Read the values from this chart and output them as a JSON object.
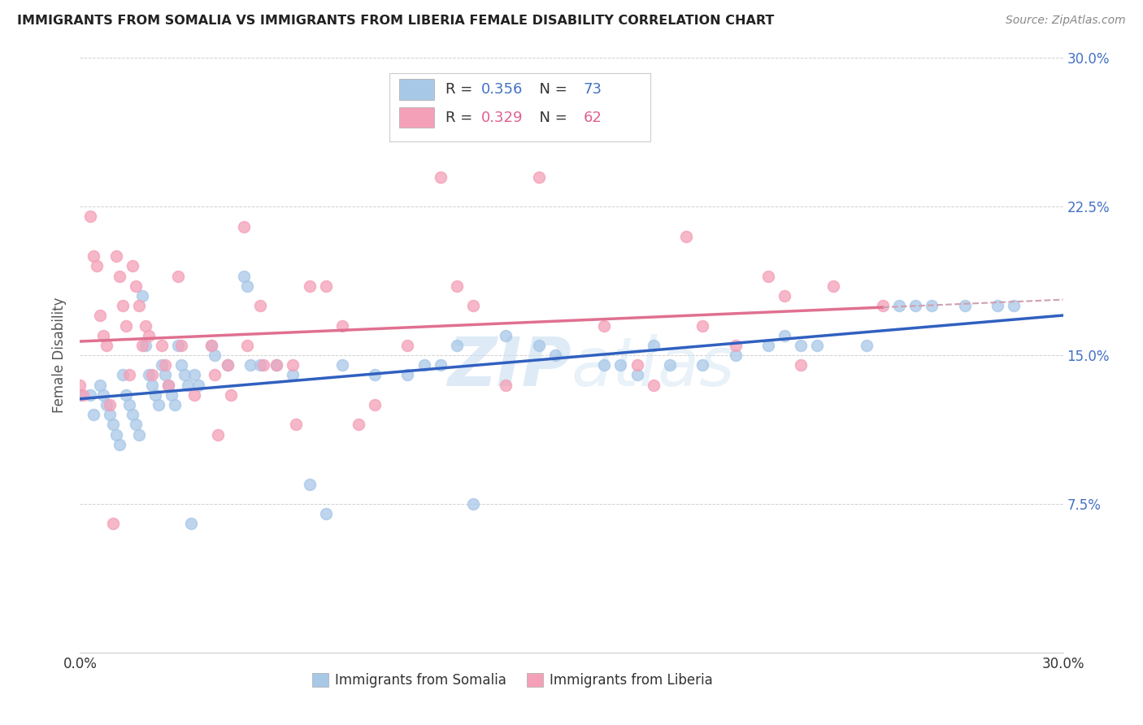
{
  "title": "IMMIGRANTS FROM SOMALIA VS IMMIGRANTS FROM LIBERIA FEMALE DISABILITY CORRELATION CHART",
  "source": "Source: ZipAtlas.com",
  "ylabel": "Female Disability",
  "xlim": [
    0.0,
    0.3
  ],
  "ylim": [
    0.0,
    0.3
  ],
  "somalia_R": 0.356,
  "somalia_N": 73,
  "liberia_R": 0.329,
  "liberia_N": 62,
  "somalia_color": "#a8c8e8",
  "liberia_color": "#f4a0b8",
  "somalia_line_color": "#3060c0",
  "liberia_line_color": "#e07090",
  "liberia_line_dashed_color": "#d0a0b0",
  "watermark_color": "#c8dff0",
  "ytick_color": "#4472c4",
  "somalia_x": [
    0.0,
    0.003,
    0.004,
    0.006,
    0.007,
    0.008,
    0.009,
    0.01,
    0.011,
    0.012,
    0.013,
    0.014,
    0.015,
    0.016,
    0.017,
    0.018,
    0.019,
    0.02,
    0.021,
    0.022,
    0.023,
    0.024,
    0.025,
    0.026,
    0.027,
    0.028,
    0.029,
    0.03,
    0.031,
    0.032,
    0.033,
    0.034,
    0.035,
    0.036,
    0.04,
    0.041,
    0.045,
    0.05,
    0.051,
    0.052,
    0.055,
    0.06,
    0.065,
    0.07,
    0.075,
    0.08,
    0.09,
    0.1,
    0.105,
    0.11,
    0.115,
    0.12,
    0.13,
    0.14,
    0.145,
    0.16,
    0.165,
    0.17,
    0.175,
    0.18,
    0.19,
    0.2,
    0.21,
    0.215,
    0.22,
    0.225,
    0.24,
    0.25,
    0.255,
    0.26,
    0.27,
    0.28,
    0.285
  ],
  "somalia_y": [
    0.13,
    0.13,
    0.12,
    0.135,
    0.13,
    0.125,
    0.12,
    0.115,
    0.11,
    0.105,
    0.14,
    0.13,
    0.125,
    0.12,
    0.115,
    0.11,
    0.18,
    0.155,
    0.14,
    0.135,
    0.13,
    0.125,
    0.145,
    0.14,
    0.135,
    0.13,
    0.125,
    0.155,
    0.145,
    0.14,
    0.135,
    0.065,
    0.14,
    0.135,
    0.155,
    0.15,
    0.145,
    0.19,
    0.185,
    0.145,
    0.145,
    0.145,
    0.14,
    0.085,
    0.07,
    0.145,
    0.14,
    0.14,
    0.145,
    0.145,
    0.155,
    0.075,
    0.16,
    0.155,
    0.15,
    0.145,
    0.145,
    0.14,
    0.155,
    0.145,
    0.145,
    0.15,
    0.155,
    0.16,
    0.155,
    0.155,
    0.155,
    0.175,
    0.175,
    0.175,
    0.175,
    0.175,
    0.175
  ],
  "liberia_x": [
    0.0,
    0.001,
    0.003,
    0.004,
    0.005,
    0.006,
    0.007,
    0.008,
    0.009,
    0.01,
    0.011,
    0.012,
    0.013,
    0.014,
    0.015,
    0.016,
    0.017,
    0.018,
    0.019,
    0.02,
    0.021,
    0.022,
    0.025,
    0.026,
    0.027,
    0.03,
    0.031,
    0.035,
    0.04,
    0.041,
    0.042,
    0.045,
    0.046,
    0.05,
    0.051,
    0.055,
    0.056,
    0.06,
    0.065,
    0.066,
    0.07,
    0.075,
    0.08,
    0.085,
    0.09,
    0.1,
    0.11,
    0.115,
    0.12,
    0.13,
    0.14,
    0.16,
    0.17,
    0.175,
    0.185,
    0.19,
    0.2,
    0.21,
    0.215,
    0.22,
    0.23,
    0.245
  ],
  "liberia_y": [
    0.135,
    0.13,
    0.22,
    0.2,
    0.195,
    0.17,
    0.16,
    0.155,
    0.125,
    0.065,
    0.2,
    0.19,
    0.175,
    0.165,
    0.14,
    0.195,
    0.185,
    0.175,
    0.155,
    0.165,
    0.16,
    0.14,
    0.155,
    0.145,
    0.135,
    0.19,
    0.155,
    0.13,
    0.155,
    0.14,
    0.11,
    0.145,
    0.13,
    0.215,
    0.155,
    0.175,
    0.145,
    0.145,
    0.145,
    0.115,
    0.185,
    0.185,
    0.165,
    0.115,
    0.125,
    0.155,
    0.24,
    0.185,
    0.175,
    0.135,
    0.24,
    0.165,
    0.145,
    0.135,
    0.21,
    0.165,
    0.155,
    0.19,
    0.18,
    0.145,
    0.185,
    0.175
  ]
}
